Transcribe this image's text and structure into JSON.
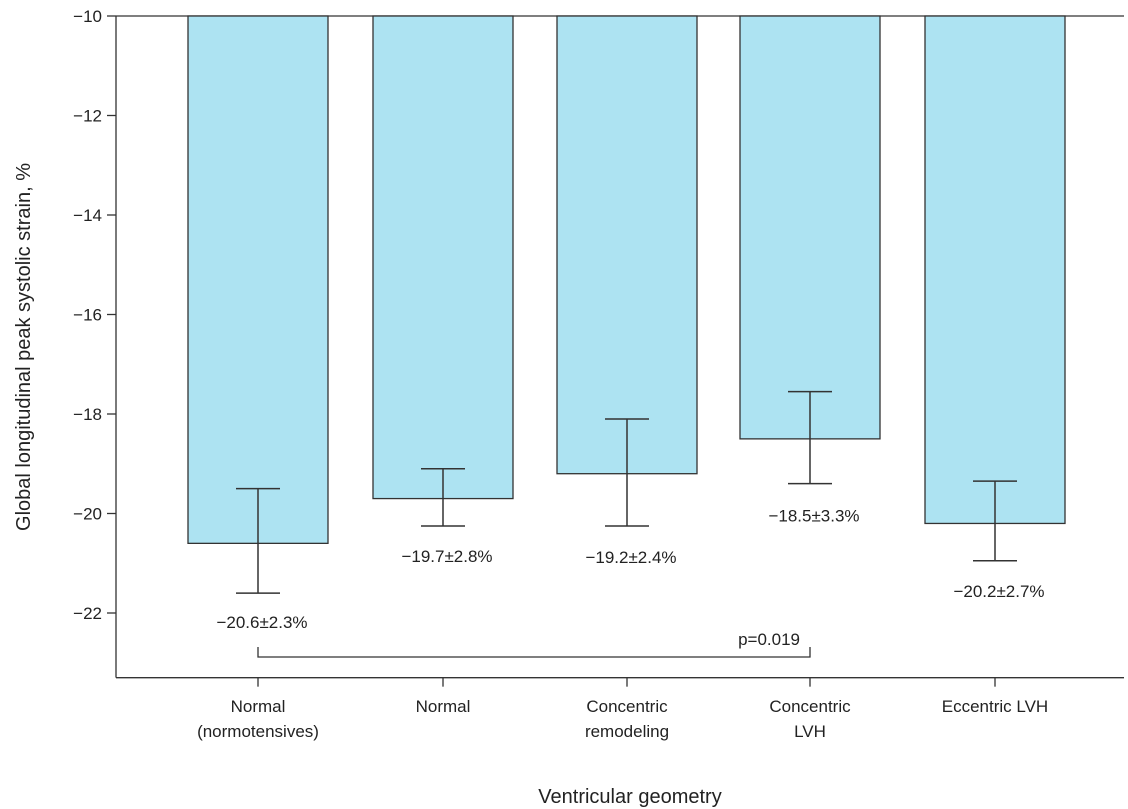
{
  "chart_data": {
    "type": "bar",
    "categories": [
      [
        "Normal",
        "(normotensives)"
      ],
      [
        "Normal"
      ],
      [
        "Concentric",
        "remodeling"
      ],
      [
        "Concentric",
        "LVH"
      ],
      [
        "Eccentric LVH"
      ]
    ],
    "values": [
      -20.6,
      -19.7,
      -19.2,
      -18.5,
      -20.2
    ],
    "error_high": [
      -19.5,
      -19.1,
      -18.1,
      -17.55,
      -19.35
    ],
    "error_low": [
      -21.6,
      -20.25,
      -20.25,
      -19.4,
      -20.95
    ],
    "data_labels": [
      "−20.6±2.3%",
      "−19.7±2.8%",
      "−19.2±2.4%",
      "−18.5±3.3%",
      "−20.2±2.7%"
    ],
    "title": "",
    "xlabel": "Ventricular geometry",
    "ylabel": "Global longitudinal peak systolic strain, %",
    "ylim": [
      -23.3,
      -10
    ],
    "yticks": [
      -10,
      -12,
      -14,
      -16,
      -18,
      -20,
      -22
    ],
    "ytick_labels": [
      "−10",
      "−12",
      "−14",
      "−16",
      "−18",
      "−20",
      "−22"
    ],
    "bar_color": "#ade3f2",
    "edge_color": "#333333",
    "grid": false,
    "significance": {
      "from_index": 0,
      "to_index": 3,
      "label": "p=0.019"
    }
  }
}
